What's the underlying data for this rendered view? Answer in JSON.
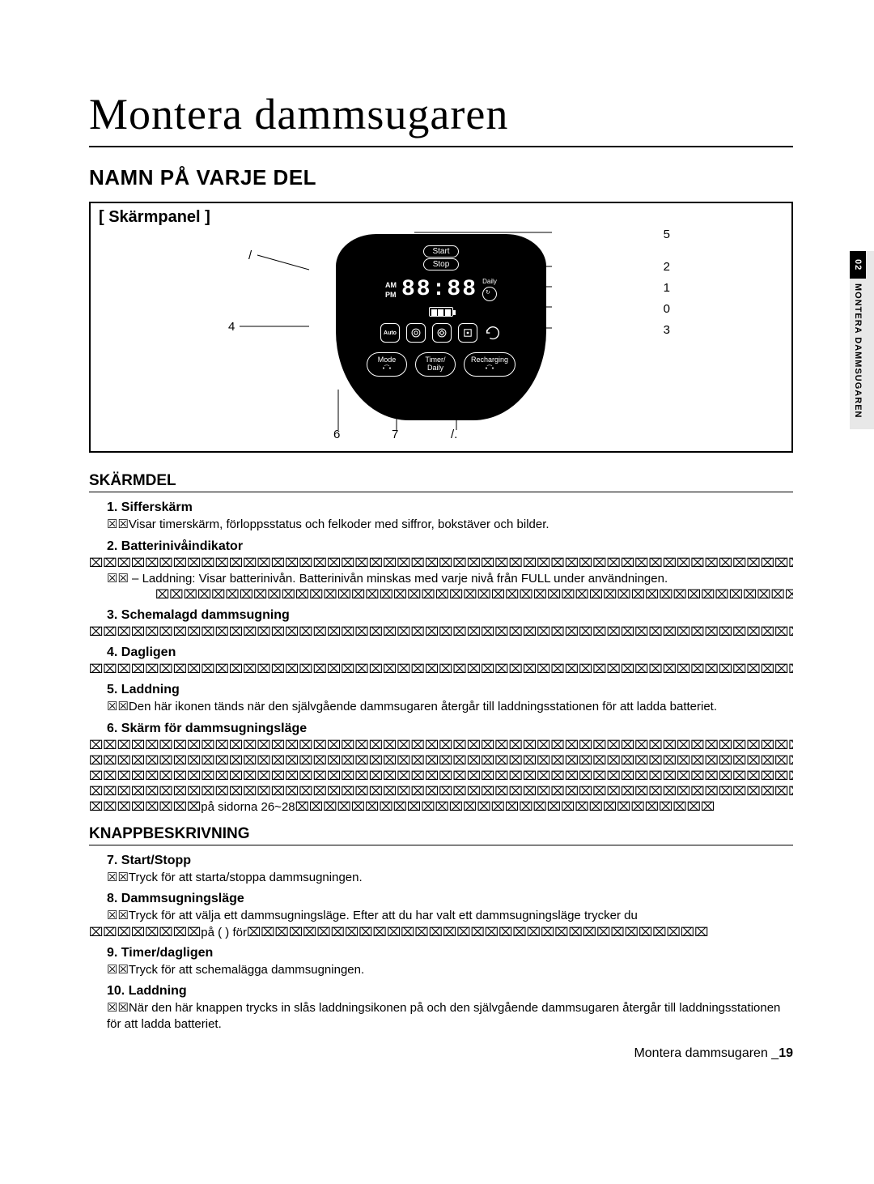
{
  "title": "Montera dammsugaren",
  "section_heading": "NAMN PÅ VARJE DEL",
  "panel_label": "[ Skärmpanel ]",
  "side_tab": {
    "num": "02",
    "text": "MONTERA DAMMSUGAREN"
  },
  "device": {
    "start": "Start",
    "stop": "Stop",
    "am": "AM",
    "pm": "PM",
    "digits": "88:88",
    "daily": "Daily",
    "auto": "Auto",
    "mode_btn": "Mode",
    "timer_btn": "Timer/\nDaily",
    "recharge_btn": "Recharging"
  },
  "callouts": {
    "c5": "5",
    "c2": "2",
    "c1": "1",
    "c0": "0",
    "c3": "3",
    "c4": "4",
    "c7l": "/",
    "c6": "6",
    "c7": "7",
    "c8r": "/."
  },
  "skarmdel_heading": "SKÄRMDEL",
  "items_a": [
    {
      "n": "1.",
      "t": "Sifferskärm",
      "body": "☒☒Visar timerskärm, förloppsstatus och felkoder med siffror, bokstäver och bilder."
    },
    {
      "n": "2.",
      "t": "Batterinivåindikator",
      "xrows": 1,
      "body": "☒☒ – Laddning: Visar batterinivån. Batterinivån minskas med varje nivå från FULL under användningen.",
      "xrows_after": 1,
      "after_indent": true
    },
    {
      "n": "3.",
      "t": "Schemalagd dammsugning",
      "xrows": 1
    },
    {
      "n": "4.",
      "t": "Dagligen",
      "xrows": 1
    },
    {
      "n": "5.",
      "t": "Laddning",
      "body": "☒☒Den här ikonen tänds när den självgående dammsugaren återgår till laddningsstationen för att ladda batteriet."
    },
    {
      "n": "6.",
      "t": "Skärm för dammsugningsläge",
      "xrows": 5,
      "xinsert": "på  sidorna 26~28"
    }
  ],
  "knapp_heading": "KNAPPBESKRIVNING",
  "items_b": [
    {
      "n": "7.",
      "t": "Start/Stopp",
      "body": "☒☒Tryck för att starta/stoppa dammsugningen."
    },
    {
      "n": "8.",
      "t": "Dammsugningsläge",
      "body": "☒☒Tryck för att välja ett dammsugningsläge. Efter att du har valt ett dammsugningsläge trycker du",
      "xrows_after": 1,
      "xinsert_after": "på (     ) för"
    },
    {
      "n": "9.",
      "t": "Timer/dagligen",
      "body": "☒☒Tryck för att schemalägga dammsugningen."
    },
    {
      "n": "10.",
      "t": "Laddning",
      "body": "☒☒När den här knappen trycks in slås laddningsikonen på och den självgående dammsugaren återgår till laddningsstationen för att ladda batteriet."
    }
  ],
  "footer": {
    "text": "Montera dammsugaren _",
    "page": "19"
  },
  "x_glyph": "⌧"
}
